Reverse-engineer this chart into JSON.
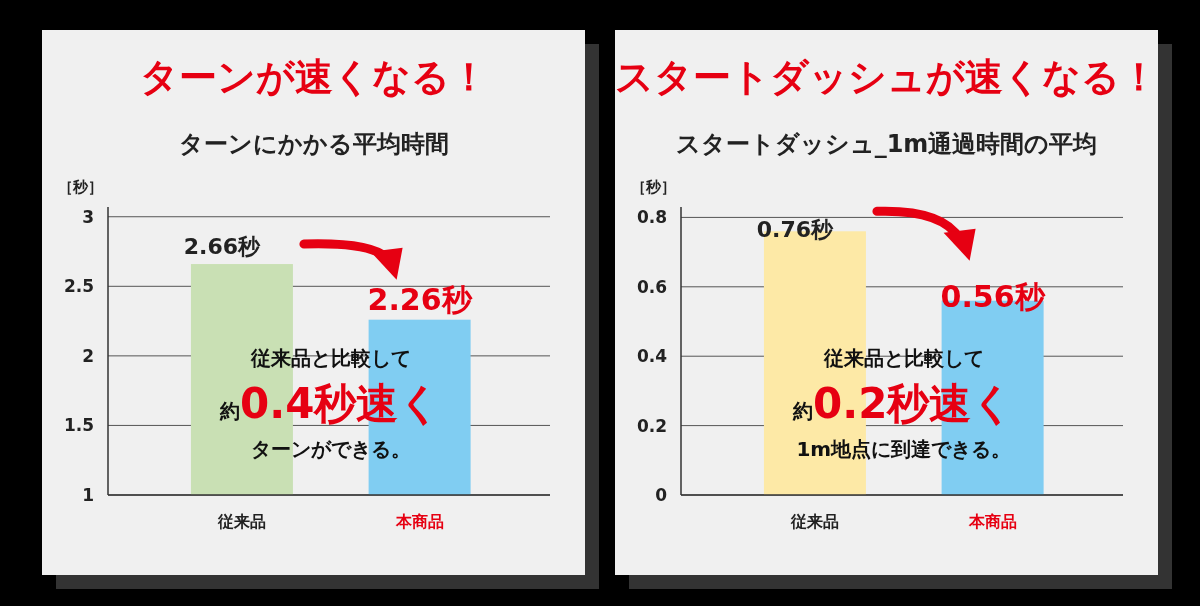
{
  "chart_data": [
    {
      "type": "bar",
      "title": "ターンが速くなる！",
      "subtitle": "ターンにかかる平均時間",
      "ylabel": "［秒］",
      "categories": [
        "従来品",
        "本商品"
      ],
      "values": [
        2.66,
        2.26
      ],
      "colors": [
        "#c9e0b4",
        "#80cdf2"
      ],
      "value_labels": [
        "2.66秒",
        "2.26秒"
      ],
      "ylim": [
        1,
        3.07
      ],
      "yticks": [
        1,
        1.5,
        2,
        2.5,
        3
      ],
      "grid": "y",
      "annotations": [
        "従来品と比較して",
        "約0.4秒速く",
        "ターンができる。"
      ]
    },
    {
      "type": "bar",
      "title": "スタートダッシュが速くなる！",
      "subtitle": "スタートダッシュ_1m通過時間の平均",
      "ylabel": "［秒］",
      "categories": [
        "従来品",
        "本商品"
      ],
      "values": [
        0.76,
        0.56
      ],
      "colors": [
        "#fde9a6",
        "#80cdf2"
      ],
      "value_labels": [
        "0.76秒",
        "0.56秒"
      ],
      "ylim": [
        0,
        0.83
      ],
      "yticks": [
        0,
        0.2,
        0.4,
        0.6,
        0.8
      ],
      "grid": "y",
      "annotations": [
        "従来品と比較して",
        "約0.2秒速く",
        "1m地点に到達できる。"
      ]
    }
  ]
}
